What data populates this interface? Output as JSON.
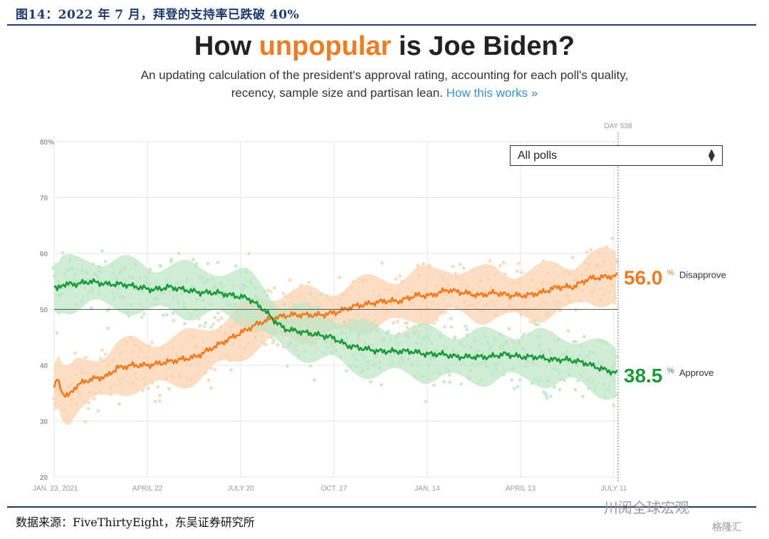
{
  "figure": {
    "label": "图14：2022 年 7 月，拜登的支持率已跌破 40%",
    "headline_pre": "How ",
    "headline_highlight": "unpopular",
    "headline_post": " is Joe Biden?",
    "subtitle_line1": "An updating calculation of the president's approval rating, accounting for each poll's quality,",
    "subtitle_line2": "recency, sample size and partisan lean. ",
    "subtitle_link": "How this works »",
    "source": "数据来源：FiveThirtyEight，东吴证券研究所",
    "watermark": "川阅全球宏观",
    "watermark2": "格隆汇"
  },
  "controls": {
    "dropdown_label": "All polls",
    "dropdown_arrow_icon": "updown-arrows-icon"
  },
  "colors": {
    "approve": "#1a9a3a",
    "approve_band": "#bfe6c6",
    "disapprove": "#f47a1f",
    "disapprove_band": "#fbd3b2",
    "grid": "#e6e6e6",
    "axis_text": "#9a9a9a"
  },
  "chart_data": {
    "type": "line",
    "title": "How unpopular is Joe Biden?",
    "xlabel": "",
    "ylabel": "",
    "ylim": [
      20,
      80
    ],
    "y_ticks": [
      "80%",
      "70",
      "60",
      "50",
      "40",
      "30",
      "20"
    ],
    "y_tick_values": [
      80,
      70,
      60,
      50,
      40,
      30,
      20
    ],
    "x_tick_labels": [
      "JAN. 23, 2021",
      "APRIL 22",
      "JULY 20",
      "OCT. 17",
      "JAN. 14",
      "APRIL 13",
      "JULY 11"
    ],
    "x_tick_days": [
      0,
      89,
      178,
      267,
      356,
      445,
      534
    ],
    "x_range_days": [
      0,
      538
    ],
    "reference_line": 50,
    "marker_label": "DAY 538",
    "marker_day": 538,
    "series": [
      {
        "name": "Disapprove",
        "end_value_text": "56.0",
        "end_value": 56.0,
        "points": [
          [
            0,
            36
          ],
          [
            3,
            37.5
          ],
          [
            8,
            35
          ],
          [
            14,
            34.5
          ],
          [
            22,
            36.5
          ],
          [
            35,
            37.5
          ],
          [
            50,
            38
          ],
          [
            60,
            39.5
          ],
          [
            75,
            40
          ],
          [
            90,
            40
          ],
          [
            105,
            40.5
          ],
          [
            120,
            41
          ],
          [
            135,
            41.5
          ],
          [
            150,
            43
          ],
          [
            165,
            44.5
          ],
          [
            180,
            46
          ],
          [
            195,
            47.5
          ],
          [
            210,
            48.5
          ],
          [
            225,
            49
          ],
          [
            240,
            49
          ],
          [
            255,
            49
          ],
          [
            270,
            49.5
          ],
          [
            285,
            50.5
          ],
          [
            300,
            51
          ],
          [
            315,
            51.5
          ],
          [
            330,
            51.5
          ],
          [
            345,
            52.5
          ],
          [
            360,
            52.5
          ],
          [
            375,
            53.5
          ],
          [
            390,
            53
          ],
          [
            405,
            52.5
          ],
          [
            420,
            53
          ],
          [
            435,
            52.5
          ],
          [
            450,
            52.5
          ],
          [
            465,
            53
          ],
          [
            480,
            54
          ],
          [
            495,
            54
          ],
          [
            510,
            55.5
          ],
          [
            525,
            55.8
          ],
          [
            538,
            56
          ]
        ]
      },
      {
        "name": "Approve",
        "end_value_text": "38.5",
        "end_value": 38.5,
        "points": [
          [
            0,
            54
          ],
          [
            3,
            53.5
          ],
          [
            8,
            54.5
          ],
          [
            20,
            54.5
          ],
          [
            35,
            55
          ],
          [
            50,
            54.5
          ],
          [
            65,
            54.5
          ],
          [
            80,
            54
          ],
          [
            95,
            53.5
          ],
          [
            110,
            54
          ],
          [
            125,
            53.5
          ],
          [
            140,
            53
          ],
          [
            155,
            53
          ],
          [
            170,
            52.5
          ],
          [
            185,
            52
          ],
          [
            200,
            50
          ],
          [
            210,
            48
          ],
          [
            220,
            46.5
          ],
          [
            235,
            46
          ],
          [
            250,
            45.5
          ],
          [
            265,
            45
          ],
          [
            280,
            43.5
          ],
          [
            295,
            43
          ],
          [
            310,
            42.5
          ],
          [
            325,
            42.5
          ],
          [
            340,
            42.5
          ],
          [
            355,
            42
          ],
          [
            370,
            42
          ],
          [
            385,
            41.5
          ],
          [
            400,
            41.5
          ],
          [
            415,
            41.5
          ],
          [
            430,
            42
          ],
          [
            445,
            41.5
          ],
          [
            460,
            41.5
          ],
          [
            475,
            41
          ],
          [
            490,
            41
          ],
          [
            505,
            40.5
          ],
          [
            520,
            39.5
          ],
          [
            538,
            38.5
          ]
        ]
      }
    ]
  }
}
